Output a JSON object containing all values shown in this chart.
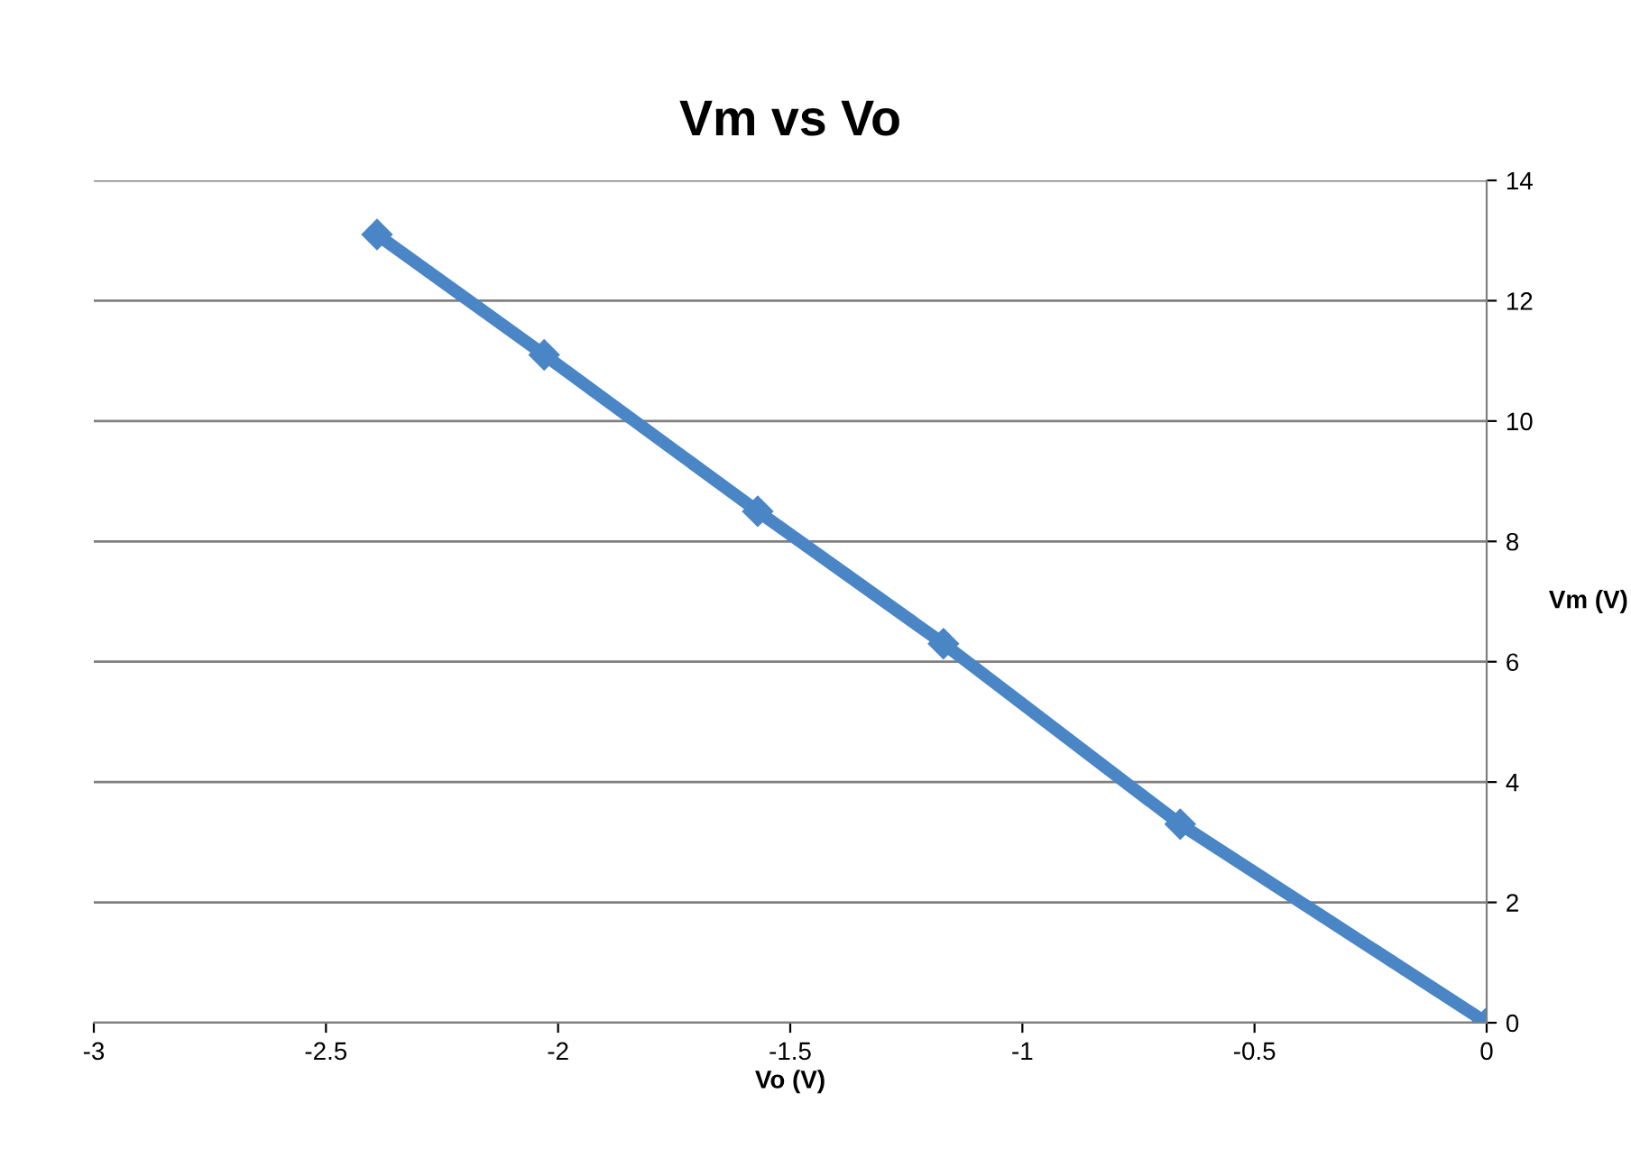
{
  "chart_data": {
    "type": "line",
    "title": "Vm vs Vo",
    "xlabel": "Vo (V)",
    "ylabel": "Vm (V)",
    "x": [
      -2.39,
      -2.03,
      -1.57,
      -1.17,
      -0.66,
      0
    ],
    "series": [
      {
        "color": "#4a86c5",
        "values": [
          13.1,
          11.1,
          8.5,
          6.3,
          3.3,
          0
        ]
      }
    ],
    "xlim": [
      -3,
      0
    ],
    "xticks": [
      -3,
      -2.5,
      -2,
      -1.5,
      -1,
      -0.5,
      0
    ],
    "ylim": [
      0,
      14
    ],
    "yticks": [
      0,
      2,
      4,
      6,
      8,
      10,
      12,
      14
    ],
    "grid": "y",
    "marker": "diamond",
    "line_style": "solid",
    "legend": false
  }
}
